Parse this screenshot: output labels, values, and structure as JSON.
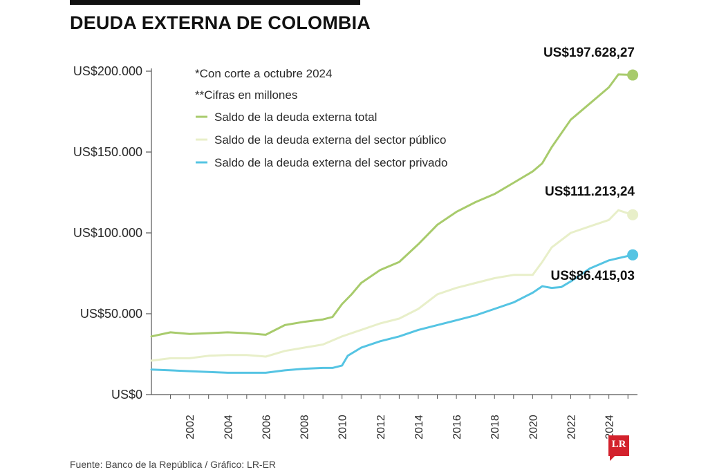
{
  "title": "DEUDA EXTERNA DE COLOMBIA",
  "footer": "Fuente: Banco de la República / Gráfico: LR-ER",
  "logo_text": "LR",
  "notes": [
    "*Con corte a octubre 2024",
    "**Cifras en millones"
  ],
  "colors": {
    "total": "#a8cb6c",
    "public": "#e8efc9",
    "private": "#55c4e3",
    "axis": "#555555"
  },
  "chart_data": {
    "type": "line",
    "title": "DEUDA EXTERNA DE COLOMBIA",
    "xlabel": "",
    "ylabel": "",
    "xlim": [
      2000,
      2025.5
    ],
    "ylim": [
      0,
      200000
    ],
    "y_ticks": [
      0,
      50000,
      100000,
      150000,
      200000
    ],
    "y_tick_labels": [
      "US$0",
      "US$50.000",
      "US$100.000",
      "US$150.000",
      "US$200.000"
    ],
    "x_ticks": [
      2002,
      2004,
      2006,
      2008,
      2010,
      2012,
      2014,
      2016,
      2018,
      2020,
      2022,
      2024
    ],
    "x_tick_labels": [
      "2002",
      "2004",
      "2006",
      "2008",
      "2010",
      "2012",
      "2014",
      "2016",
      "2018",
      "2020",
      "2022",
      "2024"
    ],
    "legend_position": "top-left",
    "series": [
      {
        "key": "total",
        "name": "Saldo de la deuda externa total",
        "end_label": "US$197.628,27",
        "x": [
          2000,
          2001,
          2002,
          2003,
          2004,
          2005,
          2006,
          2007,
          2008,
          2009,
          2009.5,
          2010,
          2010.5,
          2011,
          2012,
          2013,
          2014,
          2015,
          2016,
          2017,
          2018,
          2019,
          2020,
          2020.5,
          2021,
          2022,
          2023,
          2024,
          2024.5,
          2025.25
        ],
        "y": [
          36000,
          38500,
          37500,
          38000,
          38500,
          38000,
          37000,
          43000,
          45000,
          46500,
          48000,
          56000,
          62000,
          69000,
          77000,
          82000,
          93000,
          105000,
          113000,
          119000,
          124000,
          131000,
          138000,
          143000,
          153000,
          170000,
          180000,
          190000,
          198000,
          197628.27
        ]
      },
      {
        "key": "public",
        "name": "Saldo de la deuda externa del sector público",
        "end_label": "US$111.213,24",
        "x": [
          2000,
          2001,
          2002,
          2003,
          2004,
          2005,
          2006,
          2007,
          2008,
          2009,
          2010,
          2011,
          2012,
          2013,
          2014,
          2015,
          2016,
          2017,
          2018,
          2019,
          2020,
          2020.5,
          2021,
          2022,
          2023,
          2024,
          2024.5,
          2025.25
        ],
        "y": [
          21000,
          22500,
          22500,
          24000,
          24500,
          24500,
          23500,
          27000,
          29000,
          31000,
          36000,
          40000,
          44000,
          47000,
          53000,
          62000,
          66000,
          69000,
          72000,
          74000,
          74000,
          82000,
          91000,
          100000,
          104000,
          108000,
          114000,
          111213.24
        ]
      },
      {
        "key": "private",
        "name": "Saldo de la deuda externa del sector privado",
        "end_label": "US$86.415,03",
        "x": [
          2000,
          2001,
          2002,
          2003,
          2004,
          2005,
          2006,
          2007,
          2008,
          2009,
          2009.5,
          2010,
          2010.3,
          2011,
          2012,
          2013,
          2014,
          2015,
          2016,
          2017,
          2018,
          2019,
          2020,
          2020.5,
          2021,
          2021.5,
          2022,
          2023,
          2024,
          2025.25
        ],
        "y": [
          15500,
          15000,
          14500,
          14000,
          13500,
          13500,
          13500,
          15000,
          16000,
          16500,
          16500,
          18000,
          24000,
          29000,
          33000,
          36000,
          40000,
          43000,
          46000,
          49000,
          53000,
          57000,
          63000,
          67000,
          66000,
          66500,
          70000,
          78000,
          83000,
          86415.03
        ]
      }
    ]
  }
}
